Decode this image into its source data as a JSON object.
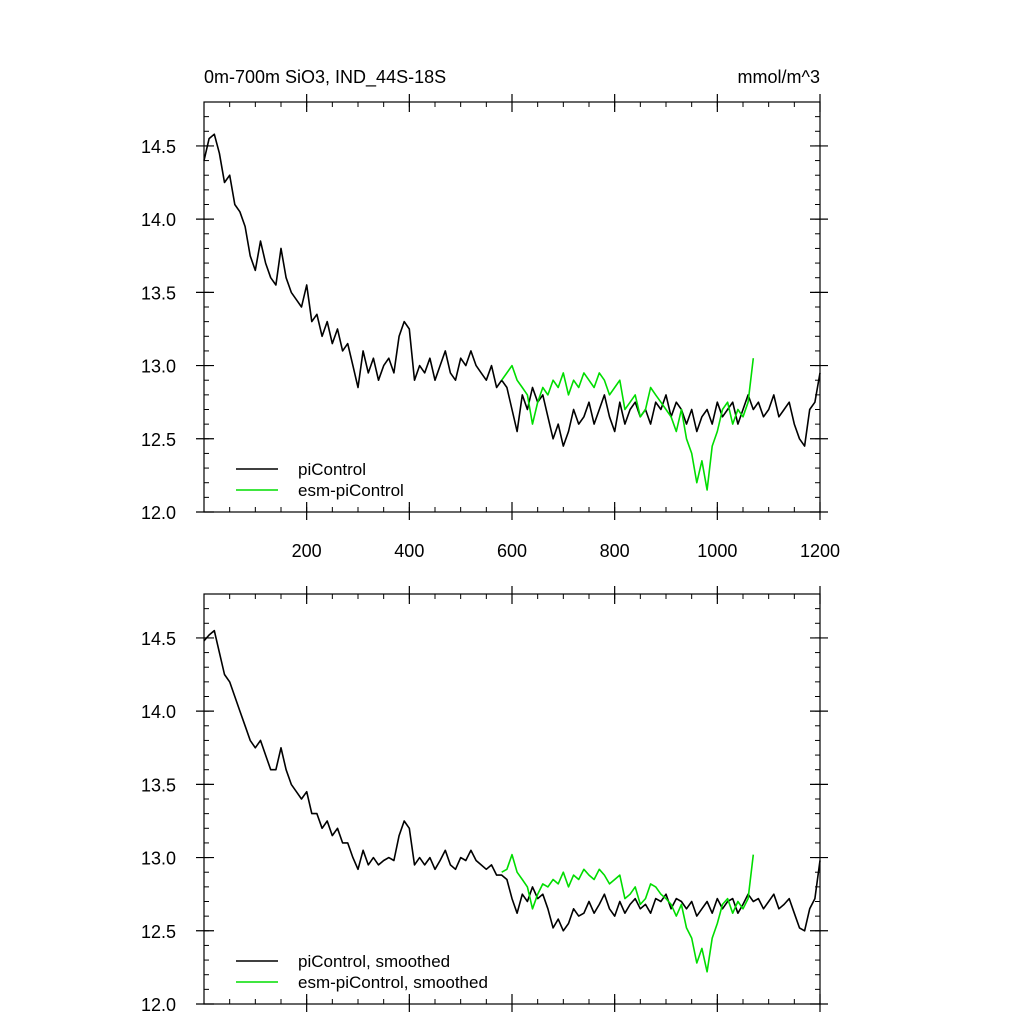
{
  "header": {
    "title": "0m-700m SiO3, IND_44S-18S",
    "units": "mmol/m^3"
  },
  "colors": {
    "picontrol": "#000000",
    "esm_picontrol": "#00dd00"
  },
  "chart_data": [
    {
      "type": "line",
      "title": "0m-700m SiO3, IND_44S-18S",
      "units": "mmol/m^3",
      "xlim": [
        0,
        1200
      ],
      "ylim": [
        12.0,
        14.8
      ],
      "x_ticks": [
        200,
        400,
        600,
        800,
        1000,
        1200
      ],
      "y_ticks": [
        12.0,
        12.5,
        13.0,
        13.5,
        14.0,
        14.5
      ],
      "legend_position": "bottom-left",
      "series": [
        {
          "name": "piControl",
          "color": "#000000",
          "x": [
            0,
            10,
            20,
            30,
            40,
            50,
            60,
            70,
            80,
            90,
            100,
            110,
            120,
            130,
            140,
            150,
            160,
            170,
            180,
            190,
            200,
            210,
            220,
            230,
            240,
            250,
            260,
            270,
            280,
            290,
            300,
            310,
            320,
            330,
            340,
            350,
            360,
            370,
            380,
            390,
            400,
            410,
            420,
            430,
            440,
            450,
            460,
            470,
            480,
            490,
            500,
            510,
            520,
            530,
            540,
            550,
            560,
            570,
            580,
            590,
            600,
            610,
            620,
            630,
            640,
            650,
            660,
            670,
            680,
            690,
            700,
            710,
            720,
            730,
            740,
            750,
            760,
            770,
            780,
            790,
            800,
            810,
            820,
            830,
            840,
            850,
            860,
            870,
            880,
            890,
            900,
            910,
            920,
            930,
            940,
            950,
            960,
            970,
            980,
            990,
            1000,
            1010,
            1020,
            1030,
            1040,
            1050,
            1060,
            1070,
            1080,
            1090,
            1100,
            1110,
            1120,
            1130,
            1140,
            1150,
            1160,
            1170,
            1180,
            1190,
            1200
          ],
          "values": [
            14.4,
            14.55,
            14.58,
            14.45,
            14.25,
            14.3,
            14.1,
            14.05,
            13.95,
            13.75,
            13.65,
            13.85,
            13.7,
            13.6,
            13.55,
            13.8,
            13.6,
            13.5,
            13.45,
            13.4,
            13.55,
            13.3,
            13.35,
            13.2,
            13.3,
            13.15,
            13.25,
            13.1,
            13.15,
            13.0,
            12.85,
            13.1,
            12.95,
            13.05,
            12.9,
            13.0,
            13.05,
            12.95,
            13.2,
            13.3,
            13.25,
            12.9,
            13.0,
            12.95,
            13.05,
            12.9,
            13.0,
            13.1,
            12.95,
            12.9,
            13.05,
            13.0,
            13.1,
            13.0,
            12.95,
            12.9,
            13.0,
            12.85,
            12.9,
            12.85,
            12.7,
            12.55,
            12.8,
            12.7,
            12.85,
            12.75,
            12.8,
            12.65,
            12.5,
            12.6,
            12.45,
            12.55,
            12.7,
            12.6,
            12.65,
            12.75,
            12.6,
            12.7,
            12.8,
            12.65,
            12.55,
            12.75,
            12.6,
            12.7,
            12.75,
            12.65,
            12.7,
            12.6,
            12.75,
            12.7,
            12.8,
            12.65,
            12.75,
            12.7,
            12.6,
            12.7,
            12.55,
            12.65,
            12.7,
            12.6,
            12.75,
            12.65,
            12.7,
            12.75,
            12.6,
            12.7,
            12.8,
            12.7,
            12.75,
            12.65,
            12.7,
            12.8,
            12.65,
            12.7,
            12.75,
            12.6,
            12.5,
            12.45,
            12.7,
            12.75,
            12.95
          ]
        },
        {
          "name": "esm-piControl",
          "color": "#00dd00",
          "x": [
            580,
            590,
            600,
            610,
            620,
            630,
            640,
            650,
            660,
            670,
            680,
            690,
            700,
            710,
            720,
            730,
            740,
            750,
            760,
            770,
            780,
            790,
            800,
            810,
            820,
            830,
            840,
            850,
            860,
            870,
            880,
            890,
            900,
            910,
            920,
            930,
            940,
            950,
            960,
            970,
            980,
            990,
            1000,
            1010,
            1020,
            1030,
            1040,
            1050,
            1060,
            1070
          ],
          "values": [
            12.9,
            12.95,
            13.0,
            12.9,
            12.85,
            12.8,
            12.6,
            12.75,
            12.85,
            12.8,
            12.9,
            12.85,
            12.95,
            12.8,
            12.9,
            12.85,
            12.95,
            12.9,
            12.85,
            12.95,
            12.9,
            12.8,
            12.85,
            12.9,
            12.7,
            12.75,
            12.8,
            12.65,
            12.7,
            12.85,
            12.8,
            12.75,
            12.7,
            12.65,
            12.55,
            12.7,
            12.5,
            12.4,
            12.2,
            12.35,
            12.15,
            12.45,
            12.55,
            12.7,
            12.75,
            12.6,
            12.7,
            12.65,
            12.75,
            13.05
          ]
        }
      ]
    },
    {
      "type": "line",
      "xlim": [
        0,
        1200
      ],
      "ylim": [
        12.0,
        14.8
      ],
      "x_ticks": [
        200,
        400,
        600,
        800,
        1000,
        1200
      ],
      "y_ticks": [
        12.0,
        12.5,
        13.0,
        13.5,
        14.0,
        14.5
      ],
      "legend_position": "bottom-left",
      "series": [
        {
          "name": "piControl, smoothed",
          "color": "#000000",
          "x": [
            0,
            10,
            20,
            30,
            40,
            50,
            60,
            70,
            80,
            90,
            100,
            110,
            120,
            130,
            140,
            150,
            160,
            170,
            180,
            190,
            200,
            210,
            220,
            230,
            240,
            250,
            260,
            270,
            280,
            290,
            300,
            310,
            320,
            330,
            340,
            350,
            360,
            370,
            380,
            390,
            400,
            410,
            420,
            430,
            440,
            450,
            460,
            470,
            480,
            490,
            500,
            510,
            520,
            530,
            540,
            550,
            560,
            570,
            580,
            590,
            600,
            610,
            620,
            630,
            640,
            650,
            660,
            670,
            680,
            690,
            700,
            710,
            720,
            730,
            740,
            750,
            760,
            770,
            780,
            790,
            800,
            810,
            820,
            830,
            840,
            850,
            860,
            870,
            880,
            890,
            900,
            910,
            920,
            930,
            940,
            950,
            960,
            970,
            980,
            990,
            1000,
            1010,
            1020,
            1030,
            1040,
            1050,
            1060,
            1070,
            1080,
            1090,
            1100,
            1110,
            1120,
            1130,
            1140,
            1150,
            1160,
            1170,
            1180,
            1190,
            1200
          ],
          "values": [
            14.48,
            14.52,
            14.55,
            14.4,
            14.25,
            14.2,
            14.1,
            14.0,
            13.9,
            13.8,
            13.75,
            13.8,
            13.7,
            13.6,
            13.6,
            13.75,
            13.6,
            13.5,
            13.45,
            13.4,
            13.45,
            13.3,
            13.3,
            13.2,
            13.25,
            13.15,
            13.2,
            13.1,
            13.1,
            13.0,
            12.92,
            13.05,
            12.95,
            13.0,
            12.95,
            12.98,
            13.0,
            12.98,
            13.15,
            13.25,
            13.2,
            12.95,
            13.0,
            12.95,
            13.0,
            12.92,
            12.98,
            13.05,
            12.95,
            12.92,
            13.0,
            12.98,
            13.05,
            12.98,
            12.95,
            12.92,
            12.95,
            12.88,
            12.88,
            12.85,
            12.72,
            12.62,
            12.75,
            12.7,
            12.8,
            12.72,
            12.75,
            12.65,
            12.52,
            12.58,
            12.5,
            12.55,
            12.65,
            12.6,
            12.62,
            12.7,
            12.62,
            12.68,
            12.75,
            12.65,
            12.6,
            12.7,
            12.62,
            12.68,
            12.72,
            12.65,
            12.68,
            12.62,
            12.72,
            12.7,
            12.75,
            12.65,
            12.72,
            12.7,
            12.65,
            12.7,
            12.6,
            12.65,
            12.7,
            12.62,
            12.72,
            12.65,
            12.7,
            12.72,
            12.62,
            12.68,
            12.75,
            12.7,
            12.72,
            12.65,
            12.7,
            12.75,
            12.65,
            12.68,
            12.72,
            12.62,
            12.52,
            12.5,
            12.65,
            12.72,
            12.98
          ]
        },
        {
          "name": "esm-piControl, smoothed",
          "color": "#00dd00",
          "x": [
            580,
            590,
            600,
            610,
            620,
            630,
            640,
            650,
            660,
            670,
            680,
            690,
            700,
            710,
            720,
            730,
            740,
            750,
            760,
            770,
            780,
            790,
            800,
            810,
            820,
            830,
            840,
            850,
            860,
            870,
            880,
            890,
            900,
            910,
            920,
            930,
            940,
            950,
            960,
            970,
            980,
            990,
            1000,
            1010,
            1020,
            1030,
            1040,
            1050,
            1060,
            1070
          ],
          "values": [
            12.9,
            12.92,
            13.02,
            12.9,
            12.85,
            12.8,
            12.65,
            12.75,
            12.82,
            12.8,
            12.85,
            12.82,
            12.9,
            12.8,
            12.88,
            12.85,
            12.92,
            12.88,
            12.85,
            12.92,
            12.88,
            12.82,
            12.85,
            12.88,
            12.72,
            12.75,
            12.8,
            12.68,
            12.72,
            12.82,
            12.8,
            12.75,
            12.72,
            12.68,
            12.6,
            12.68,
            12.52,
            12.45,
            12.28,
            12.38,
            12.22,
            12.45,
            12.55,
            12.68,
            12.72,
            12.62,
            12.7,
            12.65,
            12.72,
            13.02
          ]
        }
      ]
    }
  ]
}
